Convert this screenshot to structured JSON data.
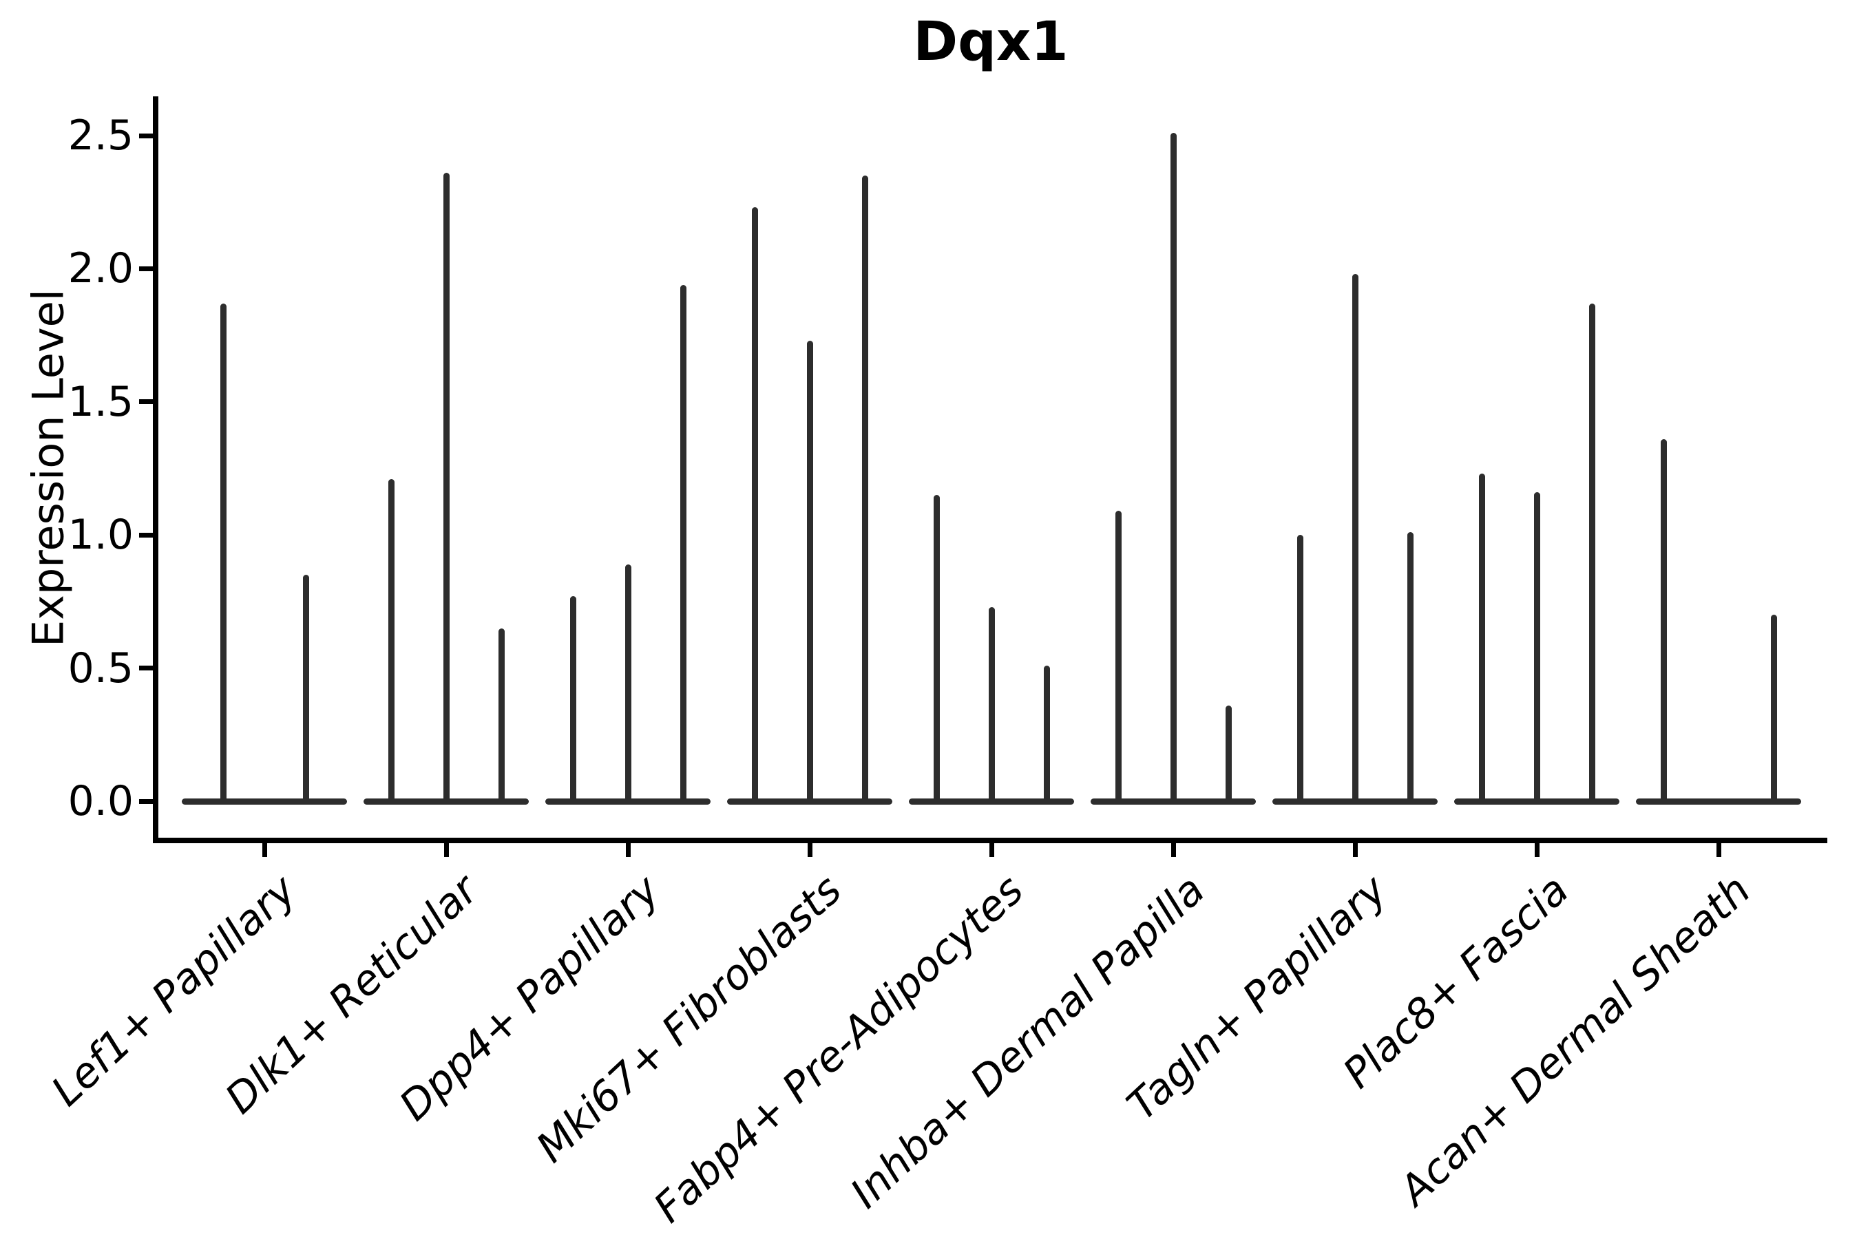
{
  "figure": {
    "background_color": "#ffffff"
  },
  "chart_data": {
    "type": "violin",
    "title": "Dqx1",
    "xlabel": "",
    "ylabel": "Expression Level",
    "ytick_labels": [
      "0.0",
      "0.5",
      "1.0",
      "1.5",
      "2.0",
      "2.5"
    ],
    "ylim": [
      -0.15,
      2.65
    ],
    "grid": false,
    "legend": "none",
    "groups": [
      {
        "category": "Lef1+ Papillary",
        "violin_maxima": [
          1.87,
          0.85
        ]
      },
      {
        "category": "Dlk1+ Reticular",
        "violin_maxima": [
          1.21,
          2.36,
          0.65
        ]
      },
      {
        "category": "Dpp4+ Papillary",
        "violin_maxima": [
          0.77,
          0.89,
          1.94
        ]
      },
      {
        "category": "Mki67+ Fibroblasts",
        "violin_maxima": [
          2.23,
          1.73,
          2.35
        ]
      },
      {
        "category": "Fabp4+ Pre-Adipocytes",
        "violin_maxima": [
          1.15,
          0.73,
          0.51
        ]
      },
      {
        "category": "Inhba+ Dermal Papilla",
        "violin_maxima": [
          1.09,
          2.51,
          0.36
        ]
      },
      {
        "category": "Tagln+ Papillary",
        "violin_maxima": [
          1.0,
          1.98,
          1.01
        ]
      },
      {
        "category": "Plac8+ Fascia",
        "violin_maxima": [
          1.23,
          1.16,
          1.87
        ]
      },
      {
        "category": "Acan+ Dermal Sheath",
        "violin_maxima": [
          1.36,
          0.0,
          0.7
        ]
      }
    ],
    "colors": {
      "violin_line": "#2d2d2d",
      "axis": "#000000",
      "text": "#000000"
    },
    "style": {
      "x_label_rotation_deg": 43,
      "x_labels_italic": true,
      "title_bold": true
    }
  }
}
